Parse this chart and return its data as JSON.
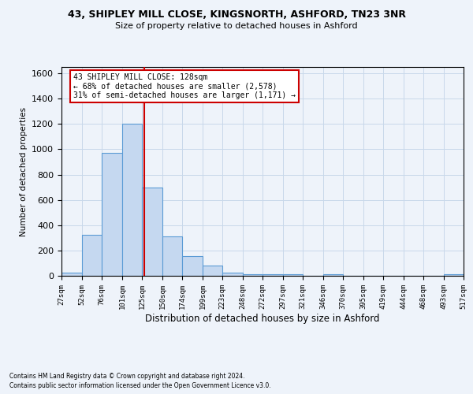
{
  "title1": "43, SHIPLEY MILL CLOSE, KINGSNORTH, ASHFORD, TN23 3NR",
  "title2": "Size of property relative to detached houses in Ashford",
  "xlabel": "Distribution of detached houses by size in Ashford",
  "ylabel": "Number of detached properties",
  "bin_edges": [
    27,
    52,
    76,
    101,
    125,
    150,
    174,
    199,
    223,
    248,
    272,
    297,
    321,
    346,
    370,
    395,
    419,
    444,
    468,
    493,
    517
  ],
  "bar_heights": [
    25,
    325,
    970,
    1200,
    700,
    310,
    155,
    80,
    25,
    15,
    15,
    10,
    0,
    15,
    0,
    0,
    0,
    0,
    0,
    15
  ],
  "bar_color": "#c5d8f0",
  "bar_edgecolor": "#5b9bd5",
  "bar_linewidth": 0.8,
  "grid_color": "#c8d8ea",
  "bg_color": "#eef3fa",
  "red_line_x": 128,
  "red_line_color": "#cc0000",
  "annotation_line1": "43 SHIPLEY MILL CLOSE: 128sqm",
  "annotation_line2": "← 68% of detached houses are smaller (2,578)",
  "annotation_line3": "31% of semi-detached houses are larger (1,171) →",
  "annotation_box_color": "#ffffff",
  "annotation_border_color": "#cc0000",
  "footnote1": "Contains HM Land Registry data © Crown copyright and database right 2024.",
  "footnote2": "Contains public sector information licensed under the Open Government Licence v3.0.",
  "ylim": [
    0,
    1650
  ],
  "yticks": [
    0,
    200,
    400,
    600,
    800,
    1000,
    1200,
    1400,
    1600
  ]
}
